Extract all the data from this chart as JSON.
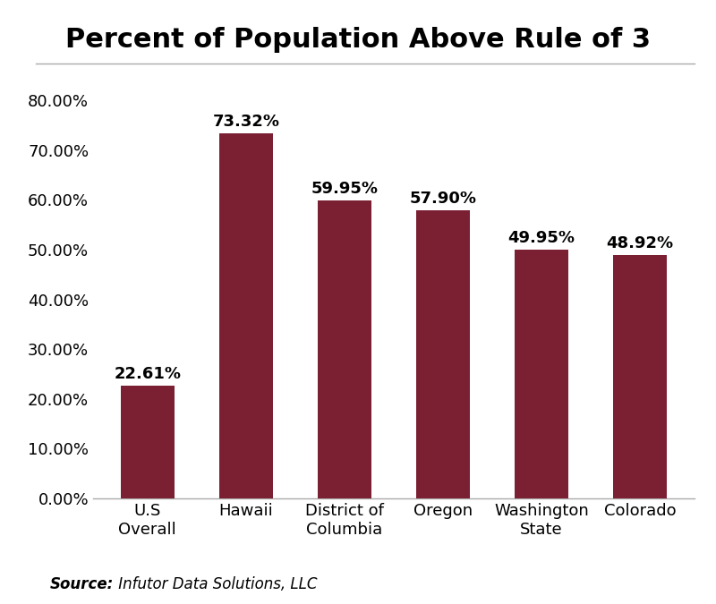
{
  "title": "Percent of Population Above Rule of 3",
  "categories": [
    "U.S\nOverall",
    "Hawaii",
    "District of\nColumbia",
    "Oregon",
    "Washington\nState",
    "Colorado"
  ],
  "values": [
    22.61,
    73.32,
    59.95,
    57.9,
    49.95,
    48.92
  ],
  "bar_color": "#7B2033",
  "value_labels": [
    "22.61%",
    "73.32%",
    "59.95%",
    "57.90%",
    "49.95%",
    "48.92%"
  ],
  "ylim": [
    0,
    85
  ],
  "yticks": [
    0,
    10,
    20,
    30,
    40,
    50,
    60,
    70,
    80
  ],
  "ytick_labels": [
    "0.00%",
    "10.00%",
    "20.00%",
    "30.00%",
    "40.00%",
    "50.00%",
    "60.00%",
    "70.00%",
    "80.00%"
  ],
  "source_bold": "Source:",
  "source_normal": " Infutor Data Solutions, LLC",
  "title_fontsize": 22,
  "label_fontsize": 13,
  "tick_fontsize": 13,
  "source_fontsize": 12,
  "background_color": "#ffffff",
  "bar_width": 0.55,
  "separator_color": "#aaaaaa",
  "spine_color": "#aaaaaa"
}
